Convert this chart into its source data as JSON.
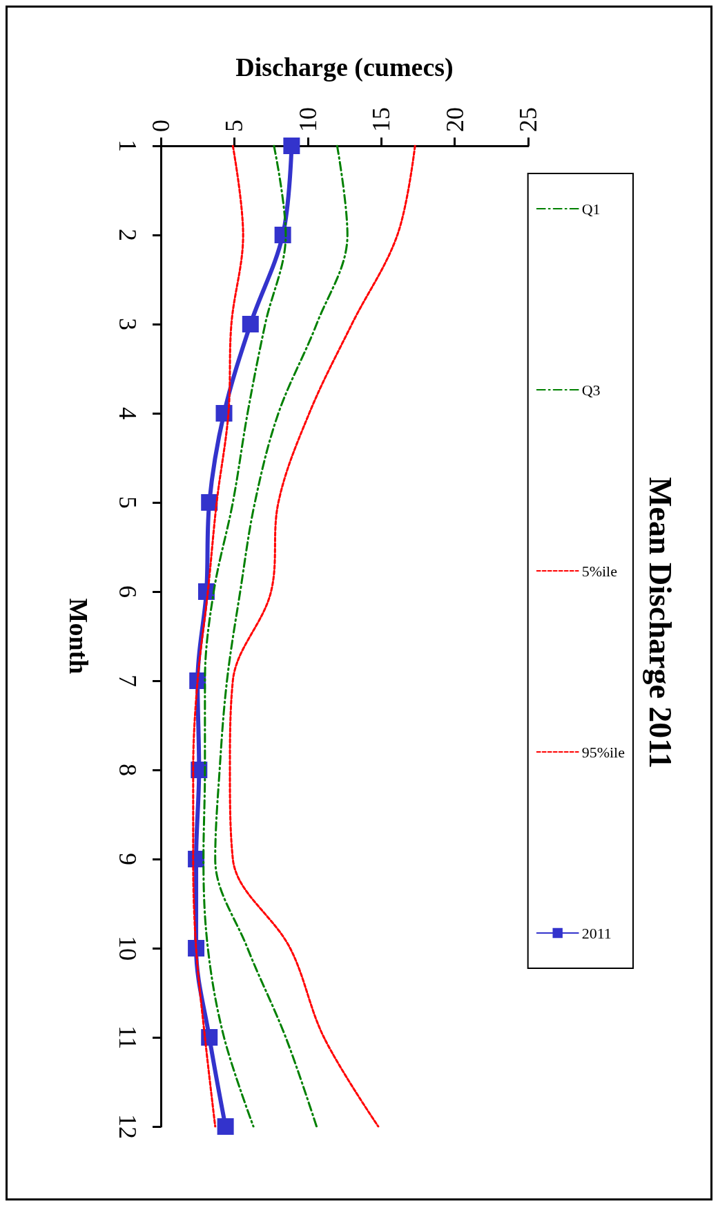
{
  "chart_data": {
    "type": "line",
    "title": "Mean Discharge 2011",
    "xlabel": "Discharge (cumecs)",
    "ylabel": "Month",
    "orientation": "horizontal",
    "categories": [
      "1",
      "2",
      "3",
      "4",
      "5",
      "6",
      "7",
      "8",
      "9",
      "10",
      "11",
      "12"
    ],
    "series": [
      {
        "name": "Q1",
        "color": "#008000",
        "line_style": "dashed",
        "marker": "none",
        "values": [
          7.7,
          8.5,
          7.1,
          5.9,
          4.9,
          3.6,
          3.0,
          3.0,
          2.9,
          3.2,
          4.3,
          6.3
        ]
      },
      {
        "name": "Q3",
        "color": "#008000",
        "line_style": "dashed",
        "marker": "none",
        "values": [
          12.0,
          12.7,
          10.6,
          8.0,
          6.4,
          5.4,
          4.5,
          4.0,
          3.7,
          5.9,
          8.5,
          10.6
        ]
      },
      {
        "name": "5%ile",
        "color": "#ff0000",
        "line_style": "dotted",
        "marker": "none",
        "values": [
          4.9,
          5.6,
          4.8,
          4.6,
          3.8,
          3.2,
          2.5,
          2.2,
          2.2,
          2.4,
          3.0,
          3.7
        ]
      },
      {
        "name": "95%ile",
        "color": "#ff0000",
        "line_style": "dotted",
        "marker": "none",
        "values": [
          17.3,
          16.1,
          13.0,
          10.1,
          8.0,
          7.5,
          4.9,
          4.7,
          4.9,
          8.8,
          11.1,
          14.8
        ]
      },
      {
        "name": "2011",
        "color": "#3333cc",
        "line_style": "solid",
        "marker": "square",
        "values": [
          8.9,
          8.3,
          6.1,
          4.3,
          3.3,
          3.1,
          2.5,
          2.6,
          2.4,
          2.4,
          3.3,
          4.4
        ]
      }
    ],
    "xlim": [
      0,
      25
    ],
    "xticks": [
      0,
      5,
      10,
      15,
      20,
      25
    ],
    "grid": false,
    "legend": "right"
  }
}
